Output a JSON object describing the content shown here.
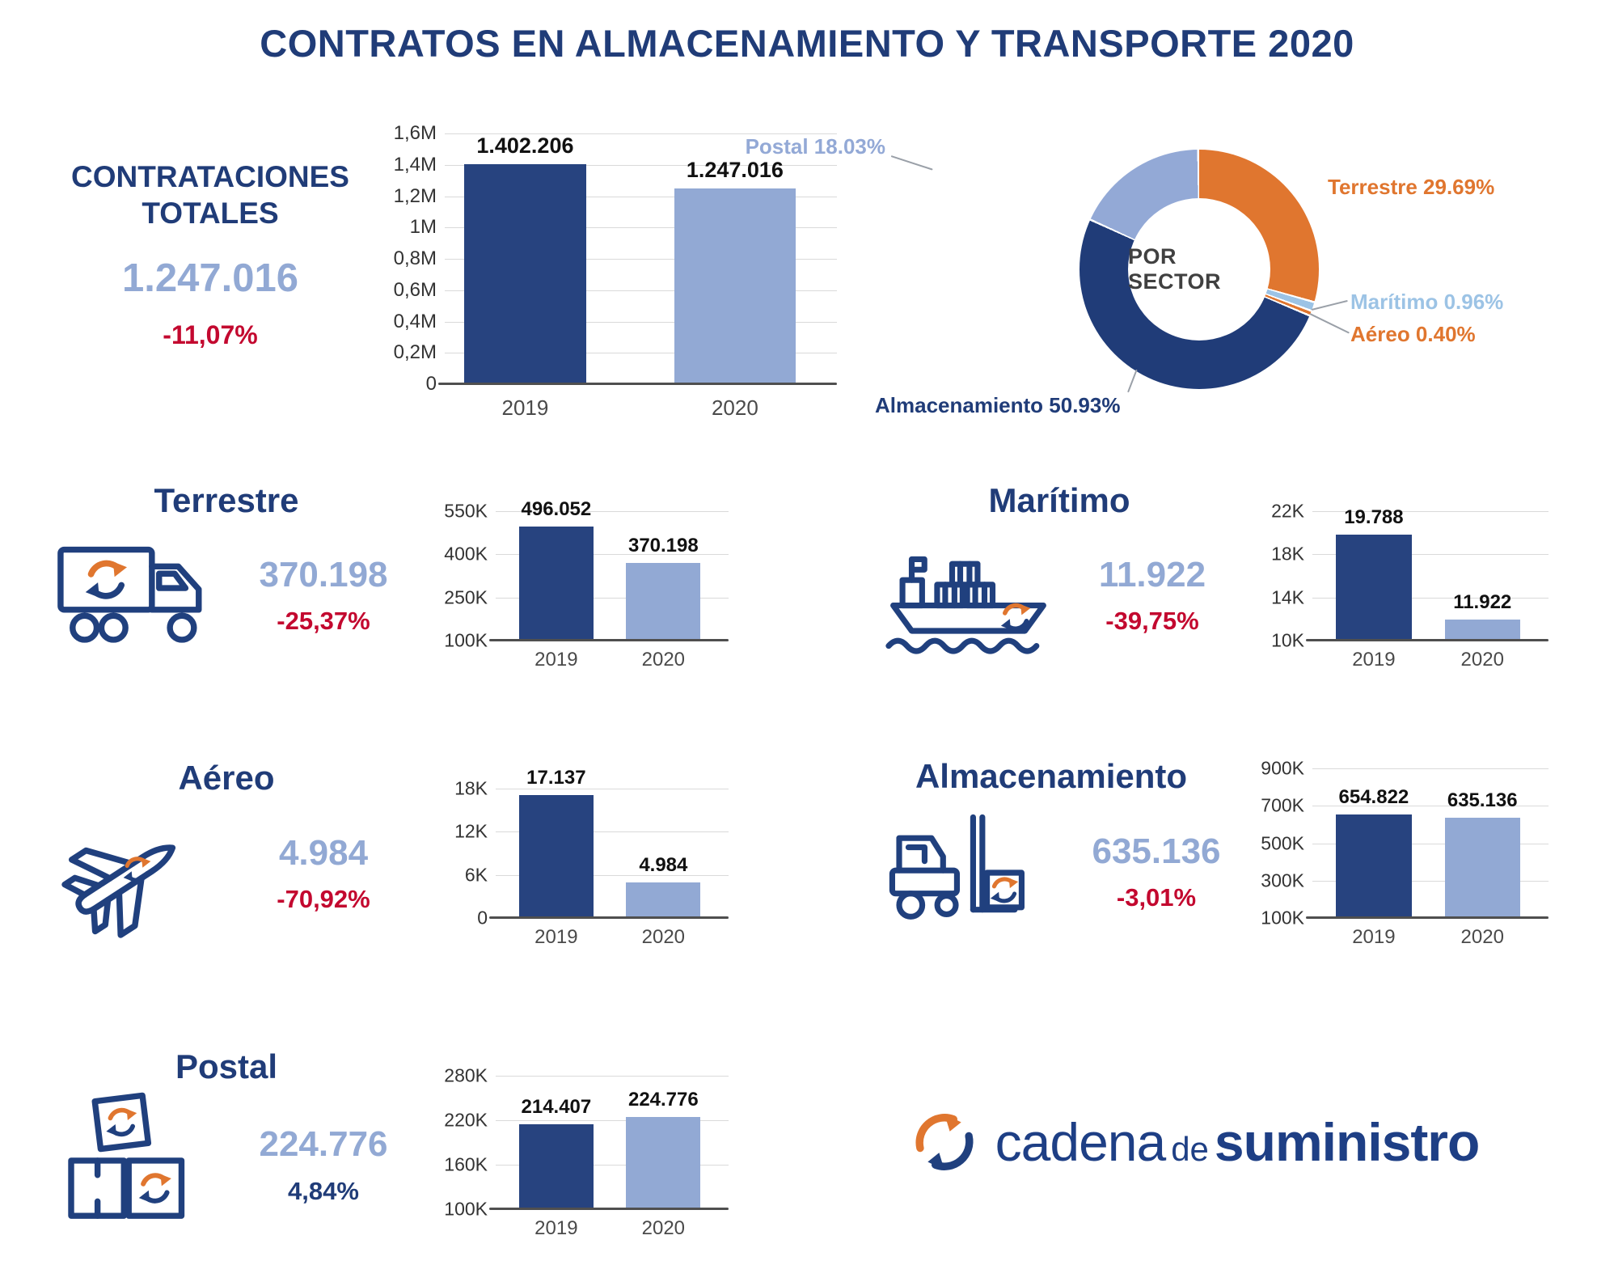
{
  "title": "CONTRATOS EN ALMACENAMIENTO Y TRANSPORTE 2020",
  "colors": {
    "navy": "#203c78",
    "bar_2019": "#27437f",
    "bar_2020": "#92a9d4",
    "value_blue": "#92a9d4",
    "negative_red": "#c3082f",
    "positive_blue": "#203c78",
    "orange": "#e0762f",
    "sky_blue": "#9cc3e5",
    "periwinkle": "#93a9d6",
    "grid": "#dadada",
    "axis": "#4f4f4f"
  },
  "totals": {
    "heading": [
      "CONTRATACIONES",
      "TOTALES"
    ],
    "value": "1.247.016",
    "change": "-11,07%"
  },
  "donut": {
    "center_label": "POR SECTOR",
    "segments": [
      {
        "name": "Terrestre",
        "label": "Terrestre 29.69%",
        "pct": 29.69,
        "color": "#e0762f"
      },
      {
        "name": "Marítimo",
        "label": "Marítimo 0.96%",
        "pct": 0.96,
        "color": "#9cc3e5"
      },
      {
        "name": "Aéreo",
        "label": "Aéreo 0.40%",
        "pct": 0.4,
        "color": "#e0762f"
      },
      {
        "name": "Almacenamiento",
        "label": "Almacenamiento 50.93%",
        "pct": 50.93,
        "color": "#203c78"
      },
      {
        "name": "Postal",
        "label": "Postal 18.03%",
        "pct": 18.03,
        "color": "#93a9d6"
      }
    ]
  },
  "sections": {
    "terrestre": {
      "title": "Terrestre",
      "value": "370.198",
      "change": "-25,37%",
      "trend": "down"
    },
    "maritimo": {
      "title": "Marítimo",
      "value": "11.922",
      "change": "-39,75%",
      "trend": "down"
    },
    "aereo": {
      "title": "Aéreo",
      "value": "4.984",
      "change": "-70,92%",
      "trend": "down"
    },
    "almacenamiento": {
      "title": "Almacenamiento",
      "value": "635.136",
      "change": "-3,01%",
      "trend": "down"
    },
    "postal": {
      "title": "Postal",
      "value": "224.776",
      "change": "4,84%",
      "trend": "up"
    }
  },
  "logo": {
    "word1": "cadena",
    "word2": "de",
    "word3": "suministro"
  },
  "chart_data": [
    {
      "id": "totales",
      "type": "bar",
      "title": "CONTRATACIONES TOTALES",
      "categories": [
        "2019",
        "2020"
      ],
      "values": [
        1402206,
        1247016
      ],
      "value_labels": [
        "1.402.206",
        "1.247.016"
      ],
      "ticks": [
        "1,6M",
        "1,4M",
        "1,2M",
        "1M",
        "0,8M",
        "0,6M",
        "0,4M",
        "0,2M",
        "0"
      ],
      "axis_min": 0,
      "axis_max": 1600000,
      "grid": true
    },
    {
      "id": "por_sector",
      "type": "pie",
      "title": "POR SECTOR",
      "labels": [
        "Terrestre",
        "Marítimo",
        "Aéreo",
        "Almacenamiento",
        "Postal"
      ],
      "values": [
        29.69,
        0.96,
        0.4,
        50.93,
        18.03
      ]
    },
    {
      "id": "terrestre",
      "type": "bar",
      "title": "Terrestre",
      "categories": [
        "2019",
        "2020"
      ],
      "values": [
        496052,
        370198
      ],
      "value_labels": [
        "496.052",
        "370.198"
      ],
      "ticks": [
        "550K",
        "400K",
        "250K",
        "100K"
      ],
      "axis_min": 100000,
      "axis_max": 550000,
      "grid": true
    },
    {
      "id": "maritimo",
      "type": "bar",
      "title": "Marítimo",
      "categories": [
        "2019",
        "2020"
      ],
      "values": [
        19788,
        11922
      ],
      "value_labels": [
        "19.788",
        "11.922"
      ],
      "ticks": [
        "22K",
        "18K",
        "14K",
        "10K"
      ],
      "axis_min": 10000,
      "axis_max": 22000,
      "grid": true
    },
    {
      "id": "aereo",
      "type": "bar",
      "title": "Aéreo",
      "categories": [
        "2019",
        "2020"
      ],
      "values": [
        17137,
        4984
      ],
      "value_labels": [
        "17.137",
        "4.984"
      ],
      "ticks": [
        "18K",
        "12K",
        "6K",
        "0"
      ],
      "axis_min": 0,
      "axis_max": 18000,
      "grid": true
    },
    {
      "id": "almacenamiento",
      "type": "bar",
      "title": "Almacenamiento",
      "categories": [
        "2019",
        "2020"
      ],
      "values": [
        654822,
        635136
      ],
      "value_labels": [
        "654.822",
        "635.136"
      ],
      "ticks": [
        "900K",
        "700K",
        "500K",
        "300K",
        "100K"
      ],
      "axis_min": 100000,
      "axis_max": 900000,
      "grid": true
    },
    {
      "id": "postal",
      "type": "bar",
      "title": "Postal",
      "categories": [
        "2019",
        "2020"
      ],
      "values": [
        214407,
        224776
      ],
      "value_labels": [
        "214.407",
        "224.776"
      ],
      "ticks": [
        "280K",
        "220K",
        "160K",
        "100K"
      ],
      "axis_min": 100000,
      "axis_max": 280000,
      "grid": true
    }
  ]
}
